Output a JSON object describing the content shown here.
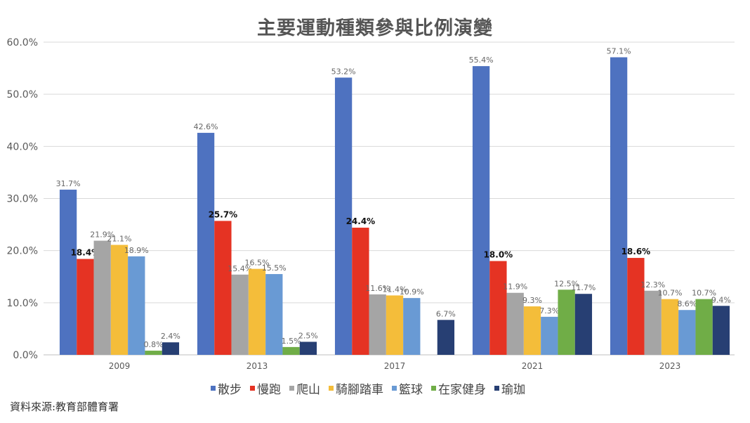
{
  "chart_data": {
    "type": "bar",
    "title": "主要運動種類參與比例演變",
    "categories": [
      "2009",
      "2013",
      "2017",
      "2021",
      "2023"
    ],
    "series": [
      {
        "name": "散步",
        "color": "#4e72c0",
        "values": [
          31.7,
          42.6,
          53.2,
          55.4,
          57.1
        ]
      },
      {
        "name": "慢跑",
        "color": "#e53323",
        "values": [
          18.4,
          25.7,
          24.4,
          18.0,
          18.6
        ],
        "bold_labels": true
      },
      {
        "name": "爬山",
        "color": "#a5a5a5",
        "values": [
          21.9,
          15.4,
          11.6,
          11.9,
          12.3
        ]
      },
      {
        "name": "騎腳踏車",
        "color": "#f4bd3a",
        "values": [
          21.1,
          16.5,
          11.4,
          9.3,
          10.7
        ]
      },
      {
        "name": "籃球",
        "color": "#699ad4",
        "values": [
          18.9,
          15.5,
          10.9,
          7.3,
          8.6
        ]
      },
      {
        "name": "在家健身",
        "color": "#70ad47",
        "values": [
          0.8,
          1.5,
          null,
          12.5,
          10.7
        ]
      },
      {
        "name": "瑜珈",
        "color": "#273f73",
        "values": [
          2.4,
          2.5,
          6.7,
          11.7,
          9.4
        ]
      }
    ],
    "ylim": [
      0,
      60
    ],
    "yticks": [
      "0.0%",
      "10.0%",
      "20.0%",
      "30.0%",
      "40.0%",
      "50.0%",
      "60.0%"
    ],
    "grid": true,
    "legend_position": "bottom"
  },
  "source": "資料來源:教育部體育署"
}
